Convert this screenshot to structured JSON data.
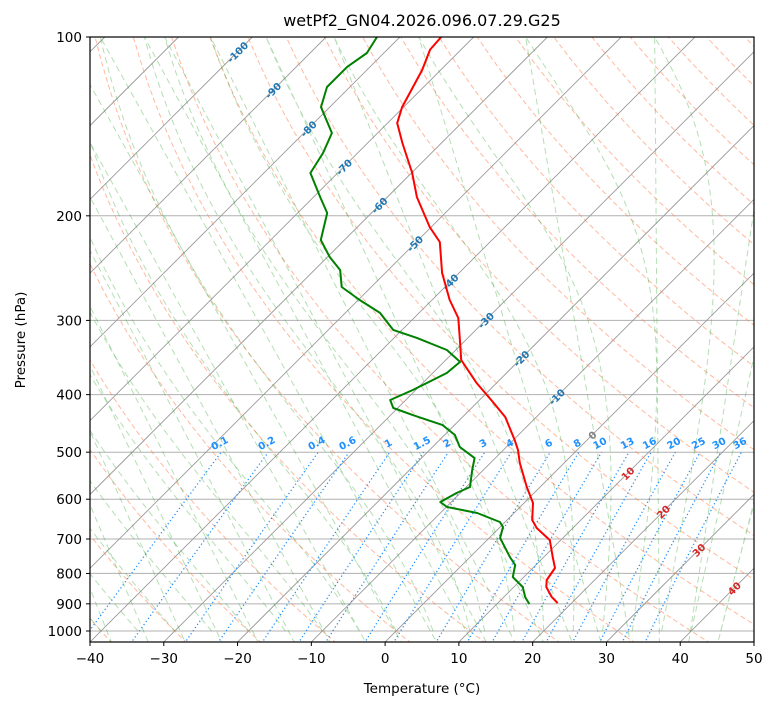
{
  "chart_data": {
    "type": "line",
    "subtype": "skew-T log-p",
    "title": "wetPf2_GN04.2026.096.07.29.G25",
    "xlabel": "Temperature (°C)",
    "ylabel": "Pressure (hPa)",
    "xlim": [
      -40,
      50
    ],
    "ylim": [
      1050,
      100
    ],
    "xticks": [
      "−40",
      "−30",
      "−20",
      "−10",
      "0",
      "10",
      "20",
      "30",
      "40",
      "50"
    ],
    "xtick_values": [
      -40,
      -30,
      -20,
      -10,
      0,
      10,
      20,
      30,
      40,
      50
    ],
    "yticks": [
      "100",
      "200",
      "300",
      "400",
      "500",
      "600",
      "700",
      "800",
      "900",
      "1000"
    ],
    "ytick_values": [
      100,
      200,
      300,
      400,
      500,
      600,
      700,
      800,
      900,
      1000
    ],
    "grid": true,
    "colors": {
      "temperature": "#ff0000",
      "dewpoint": "#008000",
      "dry_adiabat": "#ff7f50",
      "moist_adiabat": "#2ca02c",
      "mixing_ratio": "#1e90ff",
      "isotherm": "#808080"
    },
    "series": [
      {
        "name": "Temperature",
        "points_p_T": [
          [
            100,
            -74.4
          ],
          [
            105,
            -74.2
          ],
          [
            113.7,
            -72.5
          ],
          [
            131.2,
            -70.2
          ],
          [
            139.6,
            -68.7
          ],
          [
            150.8,
            -65.3
          ],
          [
            169.4,
            -59.9
          ],
          [
            186,
            -56.0
          ],
          [
            208.9,
            -50.2
          ],
          [
            221.4,
            -46.8
          ],
          [
            249.6,
            -42.3
          ],
          [
            277.2,
            -37.6
          ],
          [
            297.2,
            -34.0
          ],
          [
            323.6,
            -30.8
          ],
          [
            349.8,
            -27.9
          ],
          [
            382.4,
            -22.7
          ],
          [
            411.7,
            -17.9
          ],
          [
            436.4,
            -14.2
          ],
          [
            477.1,
            -9.8
          ],
          [
            495.9,
            -8.0
          ],
          [
            521.5,
            -6.0
          ],
          [
            572.2,
            -1.8
          ],
          [
            608.8,
            1.2
          ],
          [
            650.4,
            3.4
          ],
          [
            670.9,
            5.1
          ],
          [
            702.9,
            8.5
          ],
          [
            750.7,
            11.2
          ],
          [
            783.4,
            13.0
          ],
          [
            820.7,
            13.5
          ],
          [
            843.3,
            14.4
          ],
          [
            876.8,
            16.5
          ],
          [
            897.4,
            18.1
          ]
        ]
      },
      {
        "name": "Dewpoint",
        "points_p_T": [
          [
            100,
            -83.1
          ],
          [
            106.4,
            -82.3
          ],
          [
            112.3,
            -83.1
          ],
          [
            121.4,
            -83.1
          ],
          [
            131.2,
            -81.2
          ],
          [
            145.1,
            -76.2
          ],
          [
            156.7,
            -74.7
          ],
          [
            169.4,
            -73.7
          ],
          [
            186,
            -69.1
          ],
          [
            197.8,
            -66.0
          ],
          [
            219.7,
            -63.2
          ],
          [
            234.6,
            -59.7
          ],
          [
            246.8,
            -56.5
          ],
          [
            263.6,
            -54.0
          ],
          [
            277.2,
            -49.8
          ],
          [
            291.4,
            -45.3
          ],
          [
            311.3,
            -41.2
          ],
          [
            321.1,
            -36.9
          ],
          [
            336.5,
            -31.2
          ],
          [
            352.4,
            -27.8
          ],
          [
            367.9,
            -28.1
          ],
          [
            392.9,
            -30.4
          ],
          [
            408.5,
            -32.1
          ],
          [
            421.3,
            -30.6
          ],
          [
            433,
            -27.0
          ],
          [
            450.2,
            -21.6
          ],
          [
            467.8,
            -18.6
          ],
          [
            490.1,
            -16.3
          ],
          [
            511.5,
            -12.8
          ],
          [
            535.8,
            -11.5
          ],
          [
            572.2,
            -9.5
          ],
          [
            585.7,
            -10.5
          ],
          [
            606.5,
            -11.5
          ],
          [
            618.4,
            -9.9
          ],
          [
            633,
            -5.0
          ],
          [
            655.4,
            -0.7
          ],
          [
            668.3,
            0.4
          ],
          [
            697.4,
            1.5
          ],
          [
            750.7,
            5.4
          ],
          [
            774.3,
            7.2
          ],
          [
            811.3,
            8.5
          ],
          [
            843.3,
            11.2
          ],
          [
            876.8,
            12.9
          ],
          [
            900.8,
            14.4
          ]
        ]
      }
    ],
    "isotherm_labels": [
      {
        "T": -100,
        "text": "-100",
        "color": "#1f77b4"
      },
      {
        "T": -90,
        "text": "-90",
        "color": "#1f77b4"
      },
      {
        "T": -80,
        "text": "-80",
        "color": "#1f77b4"
      },
      {
        "T": -70,
        "text": "-70",
        "color": "#1f77b4"
      },
      {
        "T": -60,
        "text": "-60",
        "color": "#1f77b4"
      },
      {
        "T": -50,
        "text": "-50",
        "color": "#1f77b4"
      },
      {
        "T": -40,
        "text": "-40",
        "color": "#1f77b4"
      },
      {
        "T": -30,
        "text": "-30",
        "color": "#1f77b4"
      },
      {
        "T": -20,
        "text": "-20",
        "color": "#1f77b4"
      },
      {
        "T": -10,
        "text": "-10",
        "color": "#1f77b4"
      },
      {
        "T": 0,
        "text": "0",
        "color": "#808080"
      },
      {
        "T": 10,
        "text": "10",
        "color": "#d62728"
      },
      {
        "T": 20,
        "text": "20",
        "color": "#d62728"
      },
      {
        "T": 30,
        "text": "30",
        "color": "#d62728"
      },
      {
        "T": 40,
        "text": "40",
        "color": "#d62728"
      }
    ],
    "mixing_ratio_lines_gkg": [
      0.1,
      0.2,
      0.4,
      0.6,
      1,
      1.5,
      2,
      3,
      4,
      6,
      8,
      10,
      13,
      16,
      20,
      25,
      30,
      36
    ],
    "mixing_ratio_labels": [
      "0.1",
      "0.2",
      "0.4",
      "0.6",
      "1",
      "1.5",
      "2",
      "3",
      "4",
      "6",
      "8",
      "10",
      "13",
      "16",
      "20",
      "25",
      "30",
      "36"
    ],
    "mixing_ratio_top_hPa": 500,
    "dry_adiabat_start_C": [
      -50,
      -40,
      -30,
      -20,
      -10,
      0,
      10,
      20,
      30,
      40,
      50,
      60,
      70,
      80,
      90,
      100,
      110,
      120,
      130,
      140,
      150,
      160,
      170,
      180,
      190,
      200
    ],
    "moist_adiabat_start_C": [
      -40,
      -35,
      -30,
      -25,
      -20,
      -15,
      -10,
      -5,
      0,
      5,
      10,
      12,
      16,
      20,
      24,
      28,
      32,
      36,
      40,
      44
    ]
  }
}
